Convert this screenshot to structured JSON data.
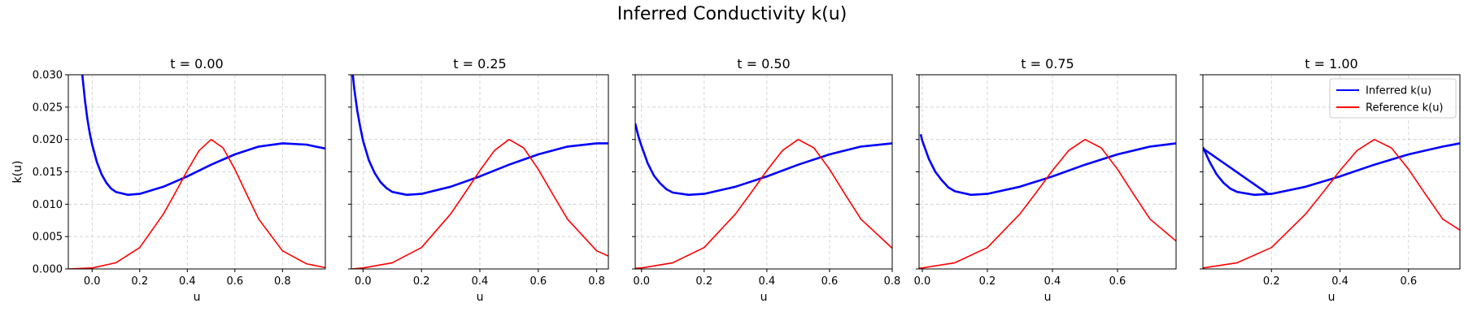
{
  "figure": {
    "title": "Inferred Conductivity k(u)"
  },
  "colors": {
    "inferred": "#0000ff",
    "reference": "#ff0000",
    "grid": "#cccccc"
  },
  "legend": {
    "placement": "upper-right",
    "panel_index": 4,
    "entries": [
      "Inferred k(u)",
      "Reference k(u)"
    ]
  },
  "chart_data": [
    {
      "type": "line",
      "title": "t = 0.00",
      "xlabel": "u",
      "ylabel": "k(u)",
      "xlim": [
        -0.1,
        0.98
      ],
      "ylim": [
        0,
        0.03
      ],
      "xticks": [
        "0.0",
        "0.2",
        "0.4",
        "0.6",
        "0.8"
      ],
      "xtick_values": [
        0,
        0.2,
        0.4,
        0.6,
        0.8
      ],
      "yticks": [
        "0.000",
        "0.005",
        "0.010",
        "0.015",
        "0.020",
        "0.025",
        "0.030"
      ],
      "ytick_values": [
        0,
        0.005,
        0.01,
        0.015,
        0.02,
        0.025,
        0.03
      ],
      "grid": true,
      "series": [
        {
          "name": "Inferred k(u)",
          "x": [
            -0.045,
            -0.04,
            -0.03,
            -0.02,
            -0.01,
            0.0,
            0.02,
            0.04,
            0.06,
            0.08,
            0.1,
            0.15,
            0.2,
            0.3,
            0.4,
            0.5,
            0.6,
            0.7,
            0.8,
            0.9,
            0.98
          ],
          "y": [
            0.032,
            0.0295,
            0.026,
            0.0232,
            0.021,
            0.0192,
            0.0165,
            0.0146,
            0.0133,
            0.0124,
            0.0119,
            0.01145,
            0.0116,
            0.0127,
            0.0143,
            0.0161,
            0.0177,
            0.0189,
            0.0194,
            0.0192,
            0.0186
          ]
        },
        {
          "name": "Reference k(u)",
          "x": [
            -0.1,
            0.0,
            0.1,
            0.2,
            0.3,
            0.35,
            0.4,
            0.45,
            0.5,
            0.55,
            0.6,
            0.65,
            0.7,
            0.8,
            0.9,
            0.98
          ],
          "y": [
            0.0,
            0.00015,
            0.00095,
            0.0033,
            0.0085,
            0.0118,
            0.0152,
            0.0183,
            0.02,
            0.0187,
            0.0154,
            0.0115,
            0.0077,
            0.0028,
            0.0008,
            0.0002
          ]
        }
      ]
    },
    {
      "type": "line",
      "title": "t = 0.25",
      "xlabel": "u",
      "ylabel": "",
      "xlim": [
        -0.04,
        0.84
      ],
      "ylim": [
        0,
        0.03
      ],
      "xticks": [
        "0.0",
        "0.2",
        "0.4",
        "0.6",
        "0.8"
      ],
      "xtick_values": [
        0,
        0.2,
        0.4,
        0.6,
        0.8
      ],
      "yticks": [],
      "ytick_values": [
        0,
        0.005,
        0.01,
        0.015,
        0.02,
        0.025,
        0.03
      ],
      "grid": true,
      "series": [
        {
          "name": "Inferred k(u)",
          "x": [
            -0.035,
            -0.03,
            -0.02,
            -0.01,
            0.0,
            0.02,
            0.04,
            0.06,
            0.08,
            0.1,
            0.15,
            0.2,
            0.3,
            0.4,
            0.5,
            0.6,
            0.7,
            0.8,
            0.84
          ],
          "y": [
            0.03,
            0.0278,
            0.0245,
            0.022,
            0.0198,
            0.0168,
            0.0148,
            0.0134,
            0.0125,
            0.0119,
            0.01145,
            0.0116,
            0.0127,
            0.0143,
            0.0161,
            0.0177,
            0.0189,
            0.0194,
            0.0194
          ]
        },
        {
          "name": "Reference k(u)",
          "x": [
            -0.04,
            0.0,
            0.1,
            0.2,
            0.3,
            0.35,
            0.4,
            0.45,
            0.5,
            0.55,
            0.6,
            0.65,
            0.7,
            0.8,
            0.84
          ],
          "y": [
            0.0,
            0.00015,
            0.00095,
            0.0033,
            0.0085,
            0.0118,
            0.0152,
            0.0183,
            0.02,
            0.0187,
            0.0154,
            0.0115,
            0.0077,
            0.0028,
            0.002
          ]
        }
      ]
    },
    {
      "type": "line",
      "title": "t = 0.50",
      "xlabel": "u",
      "ylabel": "",
      "xlim": [
        -0.02,
        0.8
      ],
      "ylim": [
        0,
        0.03
      ],
      "xticks": [
        "0.0",
        "0.2",
        "0.4",
        "0.6",
        "0.8"
      ],
      "xtick_values": [
        0,
        0.2,
        0.4,
        0.6,
        0.8
      ],
      "yticks": [],
      "ytick_values": [
        0,
        0.005,
        0.01,
        0.015,
        0.02,
        0.025,
        0.03
      ],
      "grid": true,
      "series": [
        {
          "name": "Inferred k(u)",
          "x": [
            -0.02,
            -0.01,
            0.0,
            0.02,
            0.04,
            0.06,
            0.08,
            0.1,
            0.15,
            0.2,
            0.3,
            0.4,
            0.5,
            0.6,
            0.7,
            0.8
          ],
          "y": [
            0.0225,
            0.0205,
            0.019,
            0.0163,
            0.0144,
            0.0132,
            0.0123,
            0.0118,
            0.01145,
            0.0116,
            0.0127,
            0.0143,
            0.0161,
            0.0177,
            0.0189,
            0.0194
          ]
        },
        {
          "name": "Reference k(u)",
          "x": [
            -0.02,
            0.0,
            0.1,
            0.2,
            0.3,
            0.35,
            0.4,
            0.45,
            0.5,
            0.55,
            0.6,
            0.65,
            0.7,
            0.8
          ],
          "y": [
            0.0001,
            0.00015,
            0.00095,
            0.0033,
            0.0085,
            0.0118,
            0.0152,
            0.0183,
            0.02,
            0.0187,
            0.0154,
            0.0115,
            0.0077,
            0.0032
          ]
        }
      ]
    },
    {
      "type": "line",
      "title": "t = 0.75",
      "xlabel": "u",
      "ylabel": "",
      "xlim": [
        -0.01,
        0.78
      ],
      "ylim": [
        0,
        0.03
      ],
      "xticks": [
        "0.0",
        "0.2",
        "0.4",
        "0.6"
      ],
      "xtick_values": [
        0,
        0.2,
        0.4,
        0.6
      ],
      "yticks": [],
      "ytick_values": [
        0,
        0.005,
        0.01,
        0.015,
        0.02,
        0.025,
        0.03
      ],
      "grid": true,
      "series": [
        {
          "name": "Inferred k(u)",
          "x": [
            -0.005,
            0.0,
            0.02,
            0.04,
            0.06,
            0.08,
            0.1,
            0.15,
            0.2,
            0.3,
            0.4,
            0.5,
            0.6,
            0.7,
            0.78
          ],
          "y": [
            0.0208,
            0.0198,
            0.017,
            0.015,
            0.0137,
            0.0126,
            0.012,
            0.01145,
            0.0116,
            0.0127,
            0.0143,
            0.0161,
            0.0177,
            0.0189,
            0.0194
          ]
        },
        {
          "name": "Reference k(u)",
          "x": [
            -0.01,
            0.0,
            0.1,
            0.2,
            0.3,
            0.35,
            0.4,
            0.45,
            0.5,
            0.55,
            0.6,
            0.65,
            0.7,
            0.78
          ],
          "y": [
            0.0001,
            0.00015,
            0.00095,
            0.0033,
            0.0085,
            0.0118,
            0.0152,
            0.0183,
            0.02,
            0.0187,
            0.0154,
            0.0115,
            0.0077,
            0.0043
          ]
        }
      ]
    },
    {
      "type": "line",
      "title": "t = 1.00",
      "xlabel": "u",
      "ylabel": "",
      "xlim": [
        0.0,
        0.75
      ],
      "ylim": [
        0,
        0.03
      ],
      "xticks": [
        "0.2",
        "0.4",
        "0.6"
      ],
      "xtick_values": [
        0.2,
        0.4,
        0.6
      ],
      "yticks": [],
      "ytick_values": [
        0,
        0.005,
        0.01,
        0.015,
        0.02,
        0.025,
        0.03
      ],
      "grid": true,
      "series": [
        {
          "name": "Inferred k(u)",
          "x": [
            0.0,
            0.02,
            0.04,
            0.06,
            0.08,
            0.1,
            0.15,
            0.2,
            0.3,
            0.4,
            0.5,
            0.6,
            0.7,
            0.75
          ],
          "y": [
            0.0188,
            0.0165,
            0.0146,
            0.0133,
            0.0124,
            0.0119,
            0.01145,
            0.0116,
            0.0127,
            0.0143,
            0.0161,
            0.0177,
            0.0189,
            0.0194
          ]
        },
        {
          "name": "Inferred k(u)",
          "x": [
            0.0,
            0.19
          ],
          "y": [
            0.0186,
            0.0116
          ]
        },
        {
          "name": "Reference k(u)",
          "x": [
            0.0,
            0.1,
            0.2,
            0.3,
            0.35,
            0.4,
            0.45,
            0.5,
            0.55,
            0.6,
            0.65,
            0.7,
            0.75
          ],
          "y": [
            0.00015,
            0.00095,
            0.0033,
            0.0085,
            0.0118,
            0.0152,
            0.0183,
            0.02,
            0.0187,
            0.0154,
            0.0115,
            0.0077,
            0.006
          ]
        }
      ]
    }
  ]
}
